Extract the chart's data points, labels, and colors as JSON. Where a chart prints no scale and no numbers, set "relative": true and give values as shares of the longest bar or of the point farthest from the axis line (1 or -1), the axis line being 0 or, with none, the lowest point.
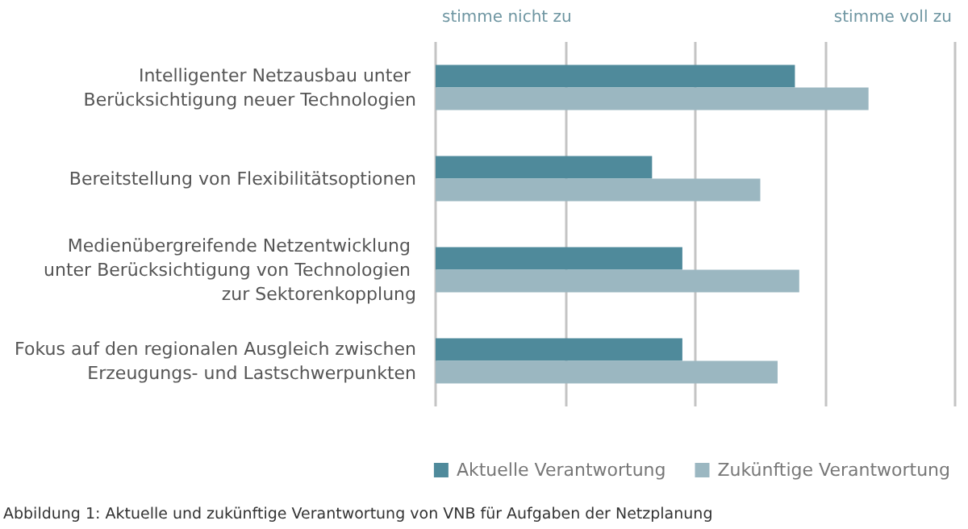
{
  "chart_data": {
    "type": "bar",
    "orientation": "horizontal",
    "relative": true,
    "categories": [
      "Intelligenter Netzausbau unter Berücksichtigung neuer Technologien",
      "Bereitstellung von Flexibilitätsoptionen",
      "Medienübergreifende Netzentwicklung unter Berücksichtigung von Technologien zur Sektorenkopplung",
      "Fokus auf den regionalen Ausgleich zwischen Erzeugungs- und Lastschwerpunkten"
    ],
    "series": [
      {
        "name": "Aktuelle Verantwortung",
        "color": "#4f8a9b",
        "values": [
          0.83,
          0.5,
          0.57,
          0.57
        ]
      },
      {
        "name": "Zukünftige Verantwortung",
        "color": "#9bb7c1",
        "values": [
          1.0,
          0.75,
          0.84,
          0.79
        ]
      }
    ],
    "grid": "x",
    "legend": "bottom right",
    "annotations": [
      "stimme nicht zu",
      "stimme voll zu",
      "Abbildung 1: Aktuelle und zukünftige Verantwortung von VNB für Aufgaben der Netzplanung"
    ]
  }
}
